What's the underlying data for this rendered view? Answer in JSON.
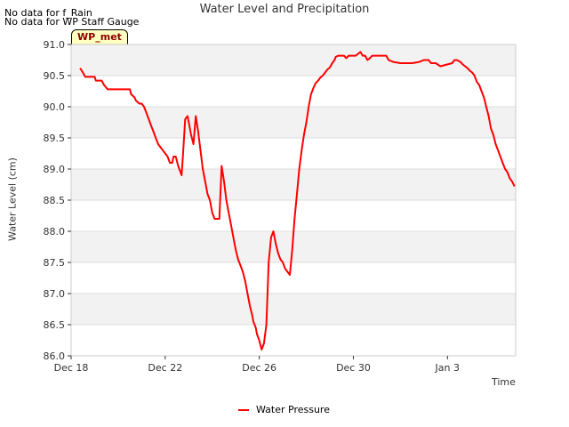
{
  "notes": [
    "No data for f_Rain",
    "No data for WP Staff Gauge"
  ],
  "badge": "WP_met",
  "chart_data": {
    "type": "line",
    "title": "Water Level and Precipitation",
    "xlabel": "Time",
    "ylabel": "Water Level (cm)",
    "ylim": [
      86.0,
      91.0
    ],
    "yticks": [
      "86.0",
      "86.5",
      "87.0",
      "87.5",
      "88.0",
      "88.5",
      "89.0",
      "89.5",
      "90.0",
      "90.5",
      "91.0"
    ],
    "xlim": [
      0,
      18.9
    ],
    "xticks": [
      {
        "label": "Dec 18",
        "day": 0
      },
      {
        "label": "Dec 22",
        "day": 4
      },
      {
        "label": "Dec 26",
        "day": 8
      },
      {
        "label": "Dec 30",
        "day": 12
      },
      {
        "label": "Jan 3",
        "day": 16
      }
    ],
    "grid": "horizontal bands",
    "legend": "bottom-center",
    "series": [
      {
        "name": "Water Pressure",
        "color": "#ff0000",
        "x": [
          0.38,
          0.5,
          0.6,
          0.7,
          1.0,
          1.05,
          1.3,
          1.4,
          1.55,
          2.2,
          2.5,
          2.55,
          2.7,
          2.75,
          2.9,
          3.0,
          3.1,
          3.2,
          3.3,
          3.4,
          3.5,
          3.6,
          3.7,
          3.8,
          3.9,
          4.0,
          4.1,
          4.2,
          4.3,
          4.35,
          4.45,
          4.55,
          4.6,
          4.7,
          4.75,
          4.85,
          4.95,
          5.1,
          5.2,
          5.3,
          5.4,
          5.5,
          5.6,
          5.7,
          5.8,
          5.9,
          5.95,
          6.0,
          6.1,
          6.2,
          6.3,
          6.4,
          6.5,
          6.6,
          6.7,
          6.8,
          6.9,
          7.0,
          7.1,
          7.2,
          7.3,
          7.4,
          7.5,
          7.6,
          7.7,
          7.75,
          7.85,
          7.9,
          8.0,
          8.1,
          8.2,
          8.3,
          8.4,
          8.5,
          8.6,
          8.7,
          8.8,
          8.9,
          9.0,
          9.1,
          9.2,
          9.3,
          9.4,
          9.5,
          9.6,
          9.7,
          9.8,
          9.9,
          10.0,
          10.1,
          10.2,
          10.3,
          10.4,
          10.5,
          10.6,
          10.7,
          10.8,
          10.9,
          11.0,
          11.1,
          11.2,
          11.25,
          11.35,
          11.5,
          11.6,
          11.7,
          11.8,
          11.9,
          12.0,
          12.1,
          12.2,
          12.3,
          12.4,
          12.5,
          12.6,
          12.7,
          12.8,
          13.0,
          13.2,
          13.4,
          13.5,
          13.7,
          14.0,
          14.3,
          14.5,
          14.8,
          15.0,
          15.2,
          15.3,
          15.4,
          15.5,
          15.7,
          16.0,
          16.2,
          16.3,
          16.4,
          16.55,
          16.65,
          16.75,
          16.85,
          16.95,
          17.05,
          17.15,
          17.25,
          17.35,
          17.45,
          17.55,
          17.65,
          17.75,
          17.85,
          17.95,
          18.05,
          18.15,
          18.25,
          18.35,
          18.45,
          18.55,
          18.65,
          18.75,
          18.85
        ],
        "y": [
          90.62,
          90.55,
          90.48,
          90.48,
          90.48,
          90.42,
          90.42,
          90.35,
          90.28,
          90.28,
          90.28,
          90.2,
          90.15,
          90.1,
          90.05,
          90.05,
          90.0,
          89.9,
          89.8,
          89.7,
          89.6,
          89.5,
          89.4,
          89.35,
          89.3,
          89.25,
          89.2,
          89.1,
          89.1,
          89.2,
          89.2,
          89.05,
          89.0,
          88.9,
          89.2,
          89.8,
          89.85,
          89.55,
          89.4,
          89.85,
          89.6,
          89.3,
          89.0,
          88.8,
          88.6,
          88.5,
          88.4,
          88.3,
          88.2,
          88.2,
          88.2,
          89.05,
          88.8,
          88.5,
          88.3,
          88.1,
          87.9,
          87.7,
          87.55,
          87.45,
          87.35,
          87.2,
          87.0,
          86.8,
          86.65,
          86.55,
          86.45,
          86.35,
          86.25,
          86.1,
          86.2,
          86.5,
          87.5,
          87.9,
          88.0,
          87.8,
          87.65,
          87.55,
          87.5,
          87.4,
          87.35,
          87.3,
          87.7,
          88.2,
          88.6,
          89.0,
          89.3,
          89.55,
          89.75,
          90.0,
          90.2,
          90.3,
          90.38,
          90.42,
          90.47,
          90.5,
          90.55,
          90.6,
          90.63,
          90.7,
          90.75,
          90.8,
          90.82,
          90.82,
          90.82,
          90.78,
          90.82,
          90.82,
          90.82,
          90.82,
          90.85,
          90.88,
          90.82,
          90.82,
          90.75,
          90.78,
          90.82,
          90.82,
          90.82,
          90.82,
          90.75,
          90.72,
          90.7,
          90.7,
          90.7,
          90.72,
          90.75,
          90.75,
          90.7,
          90.7,
          90.7,
          90.65,
          90.68,
          90.7,
          90.75,
          90.75,
          90.72,
          90.68,
          90.65,
          90.62,
          90.58,
          90.55,
          90.5,
          90.4,
          90.35,
          90.25,
          90.15,
          90.0,
          89.85,
          89.65,
          89.55,
          89.4,
          89.3,
          89.2,
          89.1,
          89.0,
          88.95,
          88.85,
          88.8,
          88.72
        ]
      }
    ]
  }
}
